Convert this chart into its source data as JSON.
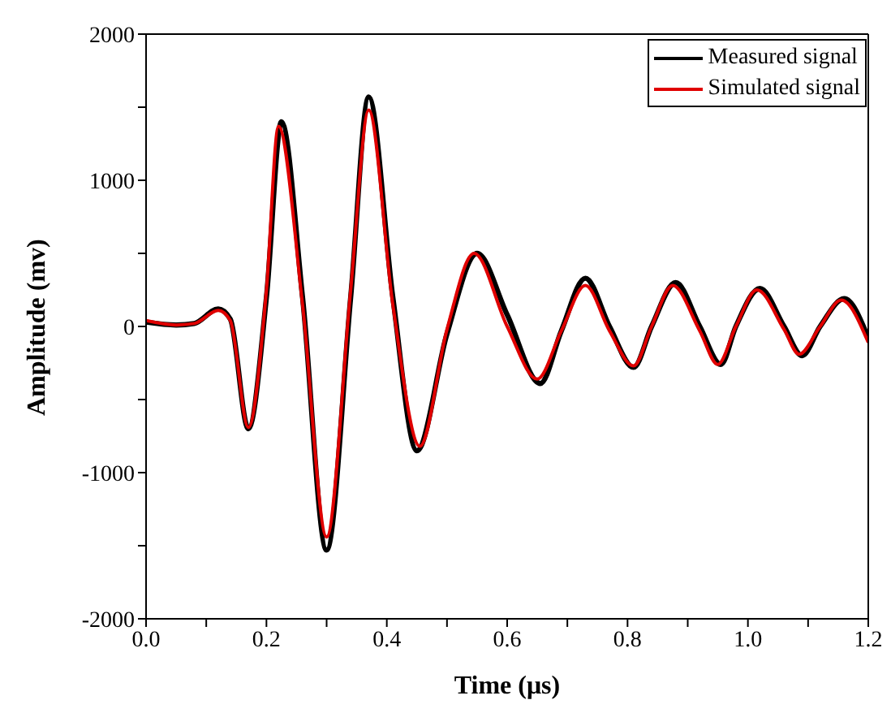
{
  "chart_data": {
    "type": "line",
    "xlabel": "Time (μs)",
    "ylabel": "Amplitude (mv)",
    "xlim": [
      0,
      1.2
    ],
    "ylim": [
      -2000,
      2000
    ],
    "xticks": [
      {
        "value": 0,
        "label": "0.0"
      },
      {
        "value": 0.1,
        "label": null
      },
      {
        "value": 0.2,
        "label": "0.2"
      },
      {
        "value": 0.3,
        "label": null
      },
      {
        "value": 0.4,
        "label": "0.4"
      },
      {
        "value": 0.5,
        "label": null
      },
      {
        "value": 0.6,
        "label": "0.6"
      },
      {
        "value": 0.7,
        "label": null
      },
      {
        "value": 0.8,
        "label": "0.8"
      },
      {
        "value": 0.9,
        "label": null
      },
      {
        "value": 1.0,
        "label": "1.0"
      },
      {
        "value": 1.1,
        "label": null
      },
      {
        "value": 1.2,
        "label": "1.2"
      }
    ],
    "yticks": [
      -2000,
      {
        "value": -1500,
        "label": null
      },
      -1000,
      {
        "value": -500,
        "label": null
      },
      0,
      {
        "value": 500,
        "label": null
      },
      1000,
      {
        "value": 1500,
        "label": null
      },
      2000
    ],
    "grid": false,
    "legend": "top right",
    "marker": "none",
    "line_style": "solid",
    "series": [
      {
        "name": "Measured signal",
        "color": "#000000",
        "x": [
          0,
          0.05,
          0.08,
          0.12,
          0.14,
          0.17,
          0.2,
          0.225,
          0.26,
          0.3,
          0.34,
          0.37,
          0.41,
          0.45,
          0.5,
          0.55,
          0.6,
          0.655,
          0.69,
          0.73,
          0.77,
          0.81,
          0.84,
          0.88,
          0.92,
          0.955,
          0.98,
          1.02,
          1.06,
          1.09,
          1.12,
          1.16,
          1.2
        ],
        "values": [
          30,
          10,
          20,
          120,
          50,
          -700,
          200,
          1400,
          200,
          -1530,
          200,
          1570,
          200,
          -850,
          -50,
          500,
          80,
          -390,
          -30,
          330,
          0,
          -280,
          0,
          300,
          0,
          -260,
          0,
          260,
          0,
          -200,
          0,
          190,
          -80
        ]
      },
      {
        "name": "Simulated signal",
        "color": "#e00000",
        "x": [
          0,
          0.05,
          0.08,
          0.12,
          0.14,
          0.17,
          0.2,
          0.22,
          0.26,
          0.3,
          0.34,
          0.37,
          0.41,
          0.455,
          0.5,
          0.545,
          0.6,
          0.65,
          0.69,
          0.73,
          0.77,
          0.81,
          0.84,
          0.875,
          0.92,
          0.95,
          0.98,
          1.015,
          1.06,
          1.085,
          1.12,
          1.155,
          1.2
        ],
        "values": [
          40,
          10,
          20,
          110,
          40,
          -690,
          250,
          1370,
          150,
          -1440,
          250,
          1480,
          150,
          -820,
          -20,
          500,
          0,
          -360,
          -30,
          280,
          -30,
          -270,
          0,
          280,
          -30,
          -260,
          0,
          250,
          -20,
          -190,
          0,
          180,
          -110
        ]
      }
    ]
  }
}
